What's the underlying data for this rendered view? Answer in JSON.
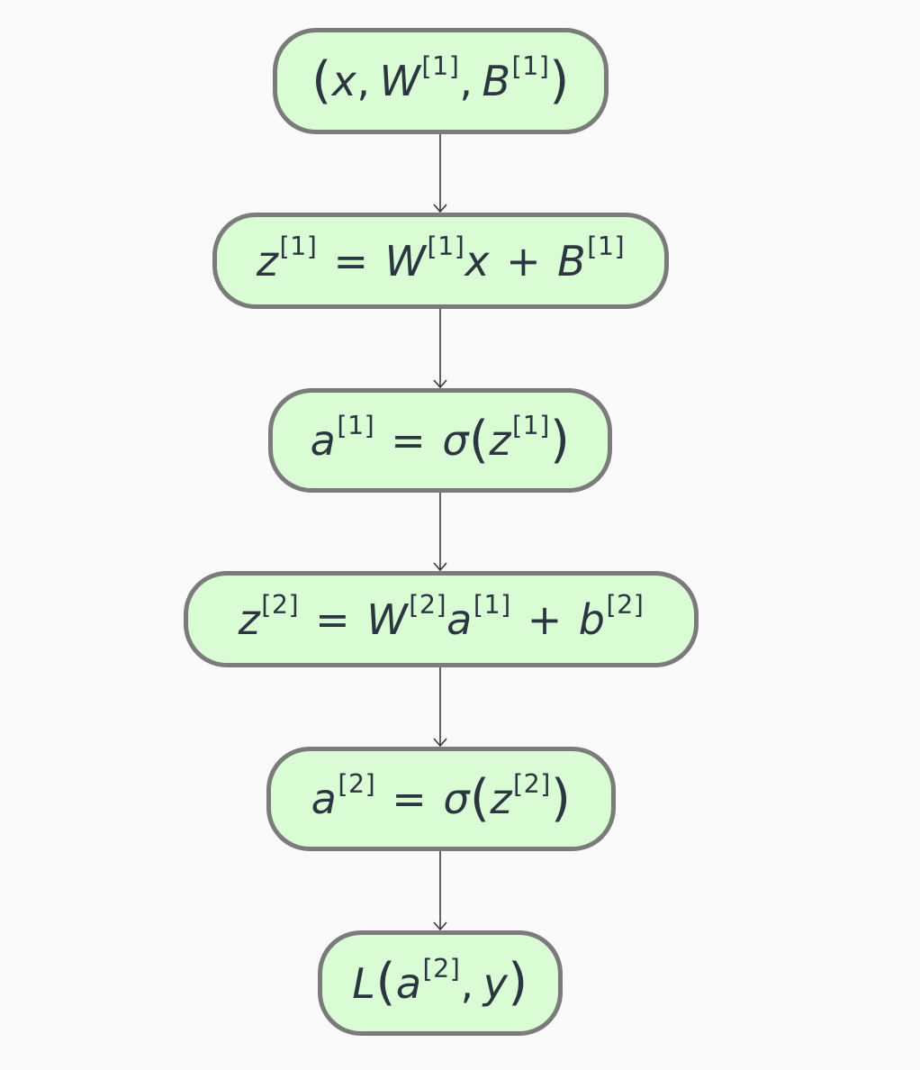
{
  "diagram": {
    "nodes": [
      {
        "id": "n1",
        "parts": [
          [
            "(",
            "paren"
          ],
          [
            "x",
            "v"
          ],
          [
            ",",
            "comma"
          ],
          [
            "W",
            "v"
          ],
          [
            "[1]",
            "sup"
          ],
          [
            ",",
            "comma"
          ],
          [
            "B",
            "v"
          ],
          [
            "[1]",
            "sup"
          ],
          [
            ")",
            "paren"
          ]
        ]
      },
      {
        "id": "n2",
        "parts": [
          [
            "z",
            "v"
          ],
          [
            "[1]",
            "sup"
          ],
          [
            "=",
            "op"
          ],
          [
            "W",
            "v"
          ],
          [
            "[1]",
            "sup"
          ],
          [
            "x",
            "v"
          ],
          [
            "+",
            "op"
          ],
          [
            "B",
            "v"
          ],
          [
            "[1]",
            "sup"
          ]
        ]
      },
      {
        "id": "n3",
        "parts": [
          [
            "a",
            "v"
          ],
          [
            "[1]",
            "sup"
          ],
          [
            "=",
            "op"
          ],
          [
            "σ",
            "sig"
          ],
          [
            "(",
            "paren"
          ],
          [
            "z",
            "v"
          ],
          [
            "[1]",
            "sup"
          ],
          [
            ")",
            "paren"
          ]
        ]
      },
      {
        "id": "n4",
        "parts": [
          [
            "z",
            "v"
          ],
          [
            "[2]",
            "sup"
          ],
          [
            "=",
            "op"
          ],
          [
            "W",
            "v"
          ],
          [
            "[2]",
            "sup"
          ],
          [
            "a",
            "v"
          ],
          [
            "[1]",
            "sup"
          ],
          [
            "+",
            "op"
          ],
          [
            "b",
            "v"
          ],
          [
            "[2]",
            "sup"
          ]
        ]
      },
      {
        "id": "n5",
        "parts": [
          [
            "a",
            "v"
          ],
          [
            "[2]",
            "sup"
          ],
          [
            "=",
            "op"
          ],
          [
            "σ",
            "sig"
          ],
          [
            "(",
            "paren"
          ],
          [
            "z",
            "v"
          ],
          [
            "[2]",
            "sup"
          ],
          [
            ")",
            "paren"
          ]
        ]
      },
      {
        "id": "n6",
        "parts": [
          [
            "L",
            "v"
          ],
          [
            "(",
            "paren"
          ],
          [
            "a",
            "v"
          ],
          [
            "[2]",
            "sup"
          ],
          [
            ",",
            "comma"
          ],
          [
            "y",
            "v"
          ],
          [
            ")",
            "paren"
          ]
        ]
      }
    ],
    "edges": [
      [
        "n1",
        "n2"
      ],
      [
        "n2",
        "n3"
      ],
      [
        "n3",
        "n4"
      ],
      [
        "n4",
        "n5"
      ],
      [
        "n5",
        "n6"
      ]
    ],
    "colors": {
      "node_fill": "#d9fcd5",
      "node_border": "#7b7b7b",
      "text": "#2b3640",
      "edge": "#3a3a3a",
      "background": "#fafafa"
    }
  }
}
